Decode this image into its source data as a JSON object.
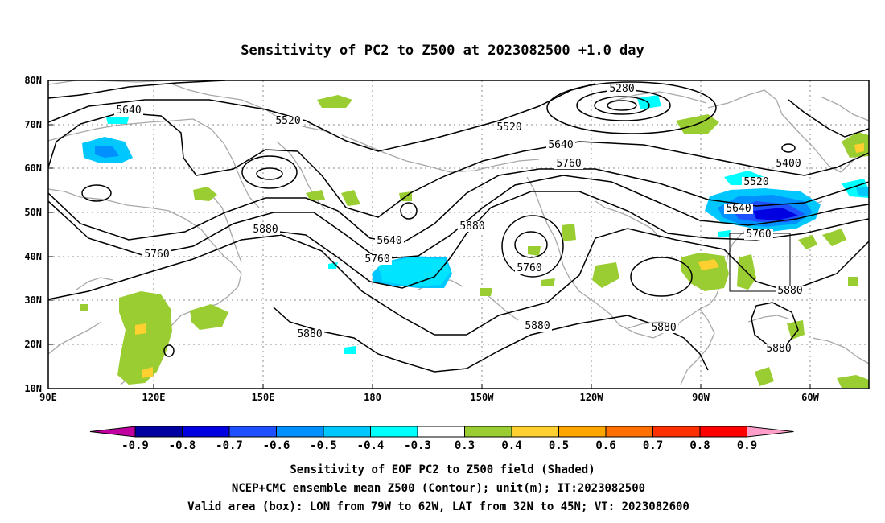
{
  "title": "Sensitivity of PC2 to Z500 at 2023082500 +1.0 day",
  "axes": {
    "lat_labels": [
      "80N",
      "70N",
      "60N",
      "50N",
      "40N",
      "30N",
      "20N",
      "10N"
    ],
    "lon_labels": [
      "90E",
      "120E",
      "150E",
      "180",
      "150W",
      "120W",
      "90W",
      "60W"
    ]
  },
  "contour_labels": [
    "5280",
    "5640",
    "5520",
    "5520",
    "5640",
    "5760",
    "5400",
    "5520",
    "5640",
    "5760",
    "5880",
    "5880",
    "5640",
    "5760",
    "5760",
    "5760",
    "5880",
    "5880",
    "5880",
    "5880",
    "5880"
  ],
  "colorbar": {
    "labels": [
      "-0.9",
      "-0.8",
      "-0.7",
      "-0.6",
      "-0.5",
      "-0.4",
      "-0.3",
      "0.3",
      "0.4",
      "0.5",
      "0.6",
      "0.7",
      "0.8",
      "0.9"
    ],
    "colors": [
      "#0000a0",
      "#0000e0",
      "#1e50ff",
      "#0090ff",
      "#00c8ff",
      "#00ffff",
      "#ffffff",
      "#9acd32",
      "#ffd030",
      "#ffa500",
      "#ff7000",
      "#ff3000",
      "#ff0000"
    ],
    "low_end_color": "#c000a0",
    "high_end_color": "#ff9ec8"
  },
  "footer": {
    "line1": "Sensitivity of EOF PC2 to Z500 field (Shaded)",
    "line2": "NCEP+CMC ensemble mean Z500 (Contour); unit(m); IT:2023082500",
    "line3": "Valid area (box): LON from 79W to 62W, LAT from 32N to 45N; VT: 2023082600"
  }
}
